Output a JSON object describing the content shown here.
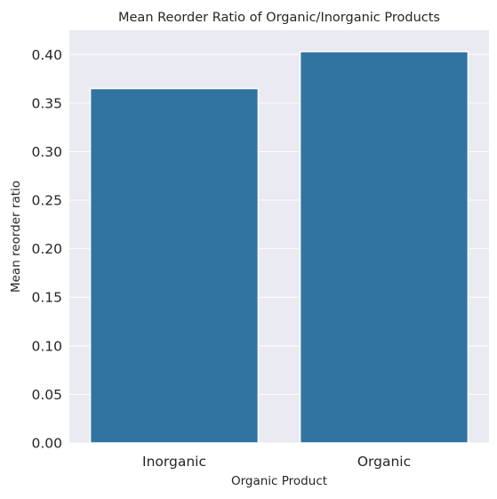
{
  "chart_data": {
    "type": "bar",
    "title": "Mean Reorder Ratio of Organic/Inorganic Products",
    "xlabel": "Organic Product",
    "ylabel": "Mean reorder ratio",
    "categories": [
      "Inorganic",
      "Organic"
    ],
    "values": [
      0.365,
      0.403
    ],
    "ylim": [
      0.0,
      0.425
    ],
    "yticks": [
      0.0,
      0.05,
      0.1,
      0.15,
      0.2,
      0.25,
      0.3,
      0.35,
      0.4
    ],
    "ytick_labels": [
      "0.00",
      "0.05",
      "0.10",
      "0.15",
      "0.20",
      "0.25",
      "0.30",
      "0.35",
      "0.40"
    ],
    "grid": true,
    "colors": {
      "bar": "#3274a1",
      "plot_background": "#eaeaf2",
      "grid": "#ffffff"
    }
  }
}
